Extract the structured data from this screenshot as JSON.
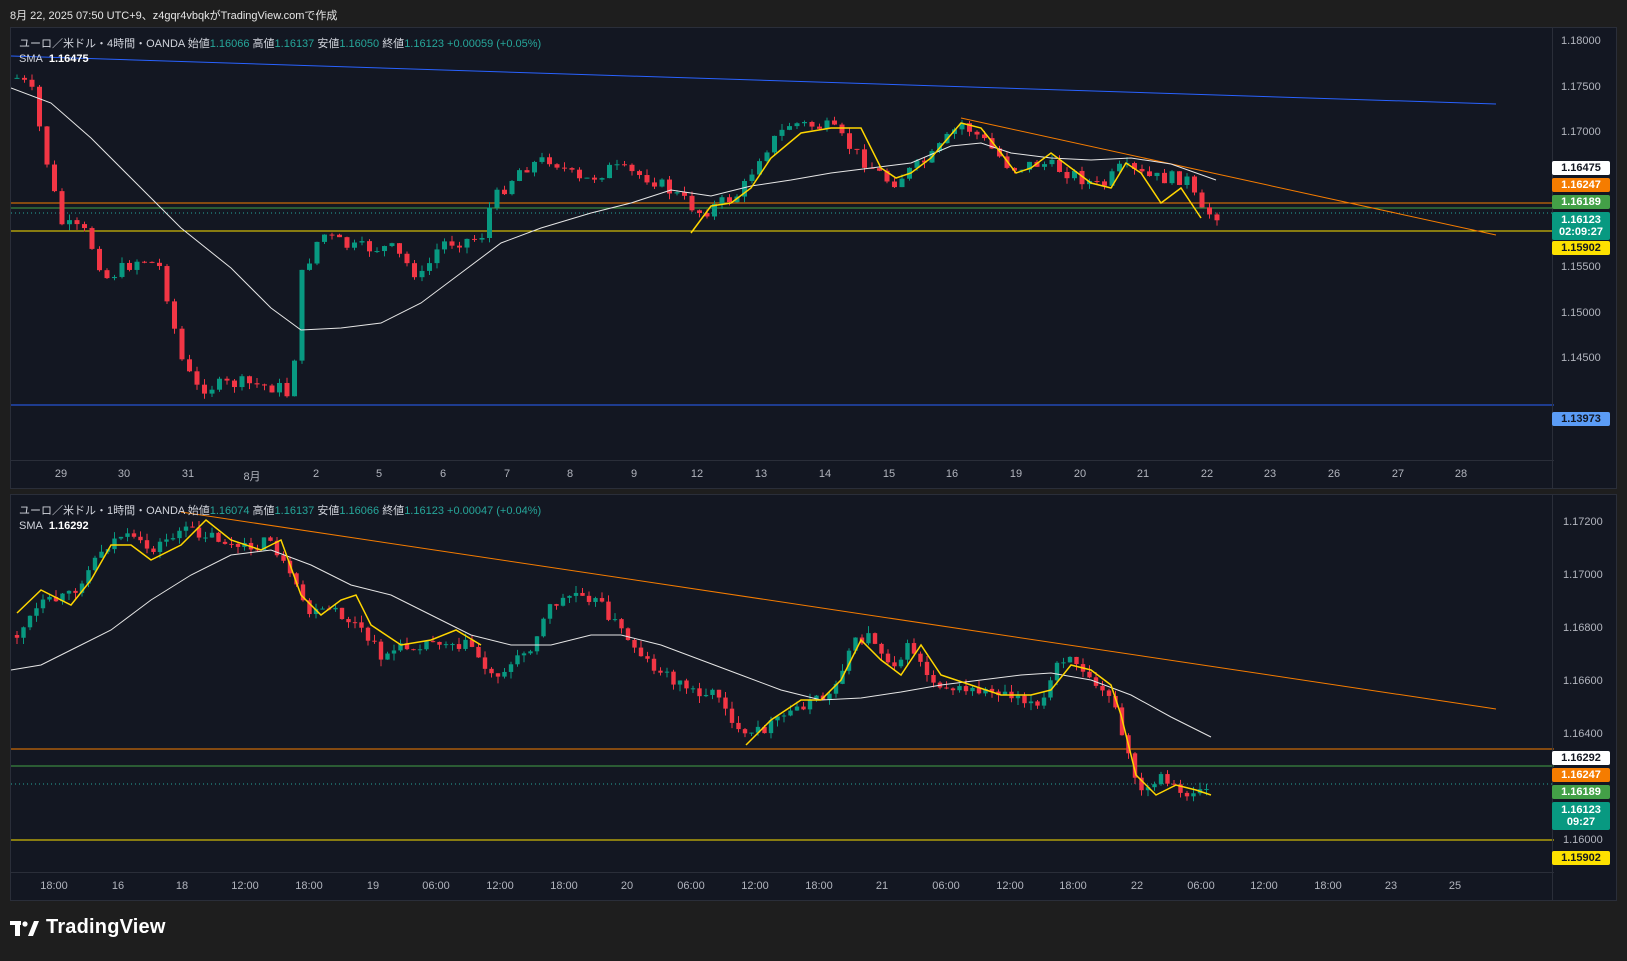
{
  "header": "8月 22, 2025 07:50 UTC+9、z4gqr4vbqkがTradingView.comで作成",
  "brand": "TradingView",
  "colors": {
    "up": "#089981",
    "down": "#f23645",
    "sma": "#e6e6e6",
    "fast": "#ffd600",
    "trend": "#f57c00",
    "blue": "#2962ff"
  },
  "pane1": {
    "symbol": "ユーロ／米ドル・4時間・OANDA",
    "open_label": "始値",
    "open": "1.16066",
    "high_label": "高値",
    "high": "1.16137",
    "low_label": "安値",
    "low": "1.16050",
    "close_label": "終値",
    "close": "1.16123",
    "change": "+0.00059 (+0.05%)",
    "sma_label": "SMA",
    "sma_value": "1.16475",
    "price_ticks": [
      "1.18000",
      "1.17500",
      "1.17000",
      "1.15500",
      "1.15000",
      "1.14500"
    ],
    "time_ticks": [
      "29",
      "30",
      "31",
      "8月",
      "2",
      "5",
      "6",
      "7",
      "8",
      "9",
      "12",
      "13",
      "14",
      "15",
      "16",
      "19",
      "20",
      "21",
      "22",
      "23",
      "26",
      "27",
      "28"
    ],
    "tags": [
      {
        "text": "1.16475",
        "cls": "white"
      },
      {
        "text": "1.16247",
        "cls": "orange"
      },
      {
        "text": "1.16189",
        "cls": "green"
      },
      {
        "text": "1.16123",
        "text2": "02:09:27",
        "cls": "teal"
      },
      {
        "text": "1.15902",
        "cls": "yellow"
      },
      {
        "text": "1.13973",
        "cls": "blue"
      }
    ]
  },
  "pane2": {
    "symbol": "ユーロ／米ドル・1時間・OANDA",
    "open_label": "始値",
    "open": "1.16074",
    "high_label": "高値",
    "high": "1.16137",
    "low_label": "安値",
    "low": "1.16066",
    "close_label": "終値",
    "close": "1.16123",
    "change": "+0.00047 (+0.04%)",
    "sma_label": "SMA",
    "sma_value": "1.16292",
    "price_ticks": [
      "1.17200",
      "1.17000",
      "1.16800",
      "1.16600",
      "1.16400",
      "1.16000"
    ],
    "time_ticks": [
      "18:00",
      "16",
      "18",
      "12:00",
      "18:00",
      "19",
      "06:00",
      "12:00",
      "18:00",
      "20",
      "06:00",
      "12:00",
      "18:00",
      "21",
      "06:00",
      "12:00",
      "18:00",
      "22",
      "06:00",
      "12:00",
      "18:00",
      "23",
      "25"
    ],
    "tags": [
      {
        "text": "1.16292",
        "cls": "white"
      },
      {
        "text": "1.16247",
        "cls": "orange"
      },
      {
        "text": "1.16189",
        "cls": "green"
      },
      {
        "text": "1.16123",
        "text2": "09:27",
        "cls": "teal"
      },
      {
        "text": "1.15902",
        "cls": "yellow"
      }
    ]
  }
}
